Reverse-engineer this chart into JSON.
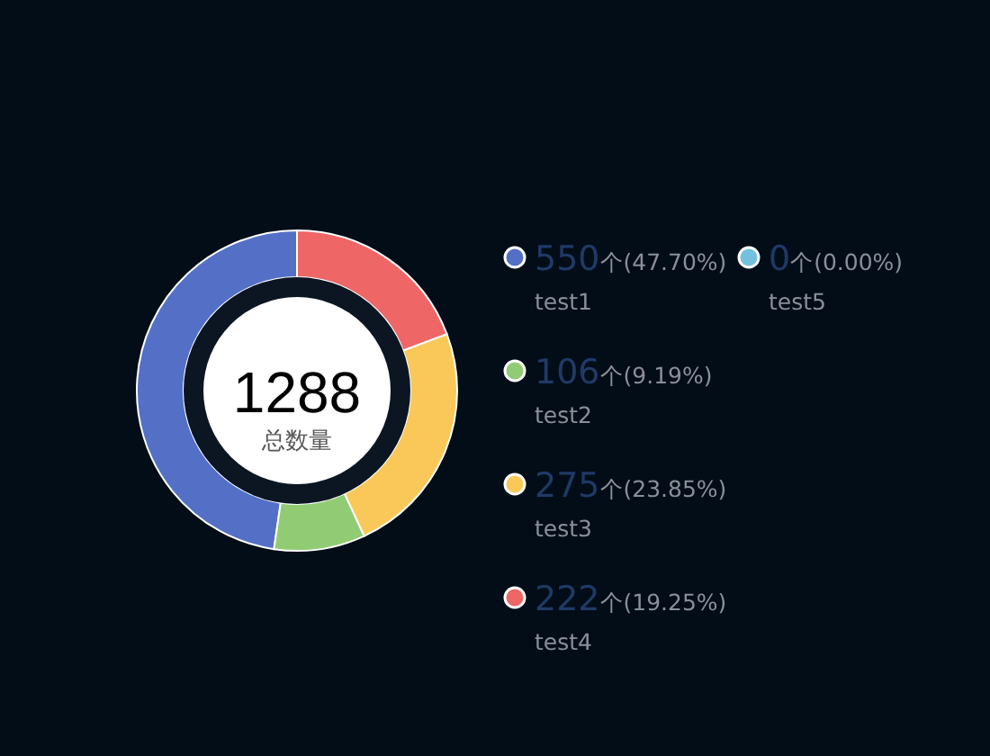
{
  "chart_data": {
    "type": "donut",
    "categories": [
      "test1",
      "test2",
      "test3",
      "test4",
      "test5"
    ],
    "values": [
      550,
      106,
      275,
      222,
      0
    ],
    "colors": [
      "#5470c6",
      "#91cc75",
      "#fac858",
      "#ee6666",
      "#73c0de"
    ],
    "value_labels": [
      "550个(47.70%)",
      "106个(9.19%)",
      "275个(23.85%)",
      "222个(19.25%)",
      "0个(0.00%)"
    ],
    "annotations": [
      "1288",
      "总数量"
    ],
    "legend": "right"
  }
}
